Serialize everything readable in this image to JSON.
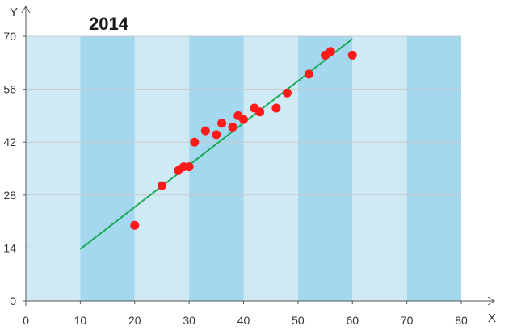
{
  "chart_data": {
    "type": "scatter",
    "title": "2014",
    "xlabel": "X",
    "ylabel": "Y",
    "xlim": [
      0,
      80
    ],
    "ylim": [
      0,
      70
    ],
    "x_ticks": [
      0,
      10,
      20,
      30,
      40,
      50,
      60,
      70,
      80
    ],
    "y_ticks": [
      0,
      14,
      28,
      42,
      56,
      70
    ],
    "grid": "horizontal",
    "colors": {
      "band_light": "#cfeaf5",
      "band_dark": "#a3d8ee",
      "points": "#ff1a1a",
      "trendline": "#1aaa5a",
      "grid": "#c9c9c9",
      "axis": "#555555"
    },
    "points": [
      {
        "x": 20,
        "y": 20
      },
      {
        "x": 25,
        "y": 30.5
      },
      {
        "x": 28,
        "y": 34.5
      },
      {
        "x": 29,
        "y": 35.5
      },
      {
        "x": 30,
        "y": 35.5
      },
      {
        "x": 31,
        "y": 42
      },
      {
        "x": 33,
        "y": 45
      },
      {
        "x": 35,
        "y": 44
      },
      {
        "x": 36,
        "y": 47
      },
      {
        "x": 38,
        "y": 46
      },
      {
        "x": 39,
        "y": 49
      },
      {
        "x": 40,
        "y": 48
      },
      {
        "x": 42,
        "y": 51
      },
      {
        "x": 43,
        "y": 50
      },
      {
        "x": 46,
        "y": 51
      },
      {
        "x": 48,
        "y": 55
      },
      {
        "x": 52,
        "y": 60
      },
      {
        "x": 55,
        "y": 65
      },
      {
        "x": 56,
        "y": 66
      },
      {
        "x": 60,
        "y": 65
      }
    ],
    "trendline": {
      "x": [
        10,
        60
      ],
      "y": [
        13.7,
        69.3
      ]
    }
  }
}
